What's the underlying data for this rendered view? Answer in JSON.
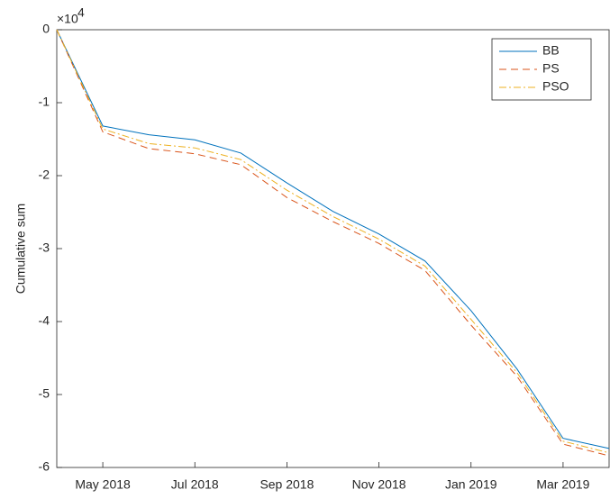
{
  "chart_data": {
    "type": "line",
    "y_label": "Cumulative sum",
    "y_exponent_base": "×10",
    "y_exponent": "4",
    "x": [
      "2018-04",
      "2018-05",
      "2018-06",
      "2018-07",
      "2018-08",
      "2018-09",
      "2018-10",
      "2018-11",
      "2018-12",
      "2019-01",
      "2019-02",
      "2019-03",
      "2019-04"
    ],
    "series": [
      {
        "name": "BB",
        "color": "#0072BD",
        "dash": "none",
        "values": [
          0,
          -1.32,
          -1.44,
          -1.51,
          -1.69,
          -2.1,
          -2.49,
          -2.8,
          -3.17,
          -3.85,
          -4.65,
          -5.6,
          -5.74
        ]
      },
      {
        "name": "PS",
        "color": "#D95319",
        "dash": "8 5",
        "values": [
          0,
          -1.4,
          -1.63,
          -1.7,
          -1.85,
          -2.3,
          -2.63,
          -2.93,
          -3.3,
          -4.05,
          -4.75,
          -5.68,
          -5.84
        ]
      },
      {
        "name": "PSO",
        "color": "#EDB120",
        "dash": "8 3 2 3",
        "values": [
          0,
          -1.36,
          -1.56,
          -1.62,
          -1.78,
          -2.2,
          -2.56,
          -2.87,
          -3.24,
          -3.97,
          -4.7,
          -5.64,
          -5.8
        ]
      }
    ],
    "xlim": [
      "2018-04",
      "2019-04"
    ],
    "xticks": [
      {
        "value": "2018-05",
        "label": "May 2018"
      },
      {
        "value": "2018-07",
        "label": "Jul 2018"
      },
      {
        "value": "2018-09",
        "label": "Sep 2018"
      },
      {
        "value": "2018-11",
        "label": "Nov 2018"
      },
      {
        "value": "2019-01",
        "label": "Jan 2019"
      },
      {
        "value": "2019-03",
        "label": "Mar 2019"
      }
    ],
    "ylim": [
      -6,
      0
    ],
    "yticks": [
      -6,
      -5,
      -4,
      -3,
      -2,
      -1,
      0
    ],
    "legend": "upper right"
  }
}
